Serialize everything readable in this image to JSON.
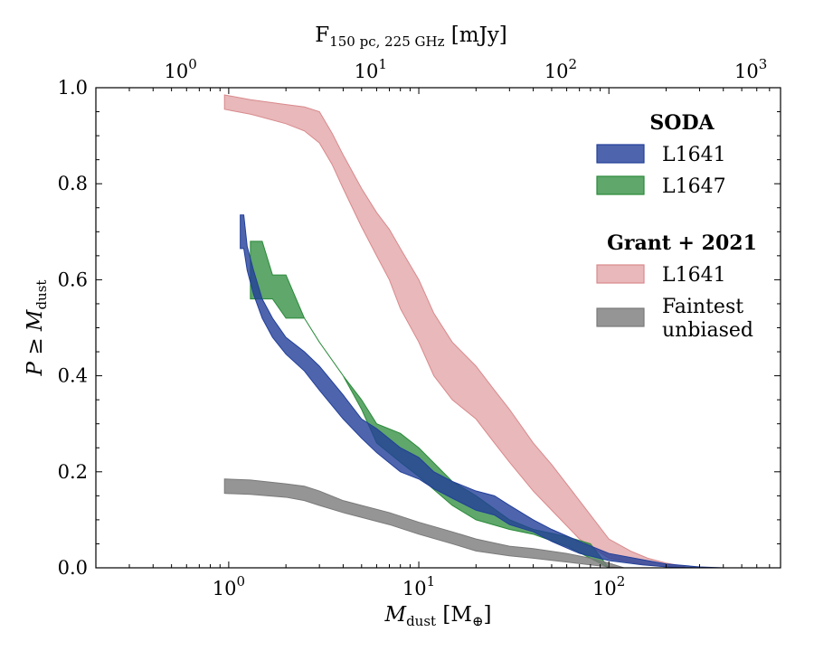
{
  "chart_data": {
    "type": "area",
    "title": "",
    "xscale": "log",
    "xlim": [
      0.2,
      800
    ],
    "ylim": [
      0.0,
      1.0
    ],
    "xlabel": {
      "main": "M",
      "sub": "dust",
      "unit_open": " [M",
      "unit_sub": "⊕",
      "unit_close": "]"
    },
    "ylabel": {
      "main": "P ≥ M",
      "sub": "dust"
    },
    "top_axis_label": {
      "main": "F",
      "sub": "150 pc, 225 GHz",
      "unit": " [mJy]"
    },
    "x_ticks": [
      {
        "value": 1,
        "base": "10",
        "exp": "0"
      },
      {
        "value": 10,
        "base": "10",
        "exp": "1"
      },
      {
        "value": 100,
        "base": "10",
        "exp": "2"
      }
    ],
    "top_ticks": [
      {
        "flux": 1,
        "base": "10",
        "exp": "0"
      },
      {
        "flux": 10,
        "base": "10",
        "exp": "1"
      },
      {
        "flux": 100,
        "base": "10",
        "exp": "2"
      },
      {
        "flux": 1000,
        "base": "10",
        "exp": "3"
      }
    ],
    "top_axis_mass_per_mjy": 0.558,
    "y_ticks": [
      "0.0",
      "0.2",
      "0.4",
      "0.6",
      "0.8",
      "1.0"
    ],
    "y_tick_values": [
      0.0,
      0.2,
      0.4,
      0.6,
      0.8,
      1.0
    ],
    "series": [
      {
        "name": "Grant + 2021 L1641",
        "color": "#d9898c",
        "alpha": 0.6,
        "x": [
          0.95,
          1.3,
          2.0,
          2.5,
          3.0,
          3.5,
          4.0,
          5.0,
          6.0,
          7.0,
          8.0,
          10.0,
          12.0,
          15.0,
          20.0,
          25.0,
          30.0,
          40.0,
          50.0,
          70.0,
          100.0,
          130.0,
          160.0,
          200.0,
          250.0
        ],
        "upper": [
          0.985,
          0.975,
          0.965,
          0.96,
          0.95,
          0.905,
          0.86,
          0.79,
          0.74,
          0.705,
          0.665,
          0.6,
          0.53,
          0.47,
          0.42,
          0.37,
          0.33,
          0.26,
          0.215,
          0.14,
          0.06,
          0.035,
          0.02,
          0.01,
          0.003
        ],
        "lower": [
          0.955,
          0.945,
          0.925,
          0.91,
          0.885,
          0.84,
          0.79,
          0.71,
          0.65,
          0.6,
          0.54,
          0.47,
          0.4,
          0.35,
          0.31,
          0.26,
          0.22,
          0.16,
          0.12,
          0.06,
          0.02,
          0.012,
          0.006,
          0.002,
          0.0
        ]
      },
      {
        "name": "SODA L1647",
        "color": "#2a8a3a",
        "alpha": 0.75,
        "x": [
          1.3,
          1.5,
          1.7,
          2.0,
          2.5,
          3.0,
          4.0,
          5.0,
          6.0,
          8.0,
          10.0,
          15.0,
          20.0,
          30.0,
          40.0,
          60.0,
          80.0,
          100.0
        ],
        "upper": [
          0.68,
          0.68,
          0.61,
          0.61,
          0.52,
          0.47,
          0.4,
          0.35,
          0.3,
          0.28,
          0.25,
          0.18,
          0.15,
          0.1,
          0.08,
          0.065,
          0.05,
          0.0
        ],
        "lower": [
          0.56,
          0.56,
          0.56,
          0.52,
          0.52,
          0.47,
          0.4,
          0.33,
          0.26,
          0.22,
          0.19,
          0.13,
          0.1,
          0.08,
          0.07,
          0.045,
          0.02,
          0.0
        ]
      },
      {
        "name": "SODA L1641",
        "color": "#223f99",
        "alpha": 0.8,
        "x": [
          1.15,
          1.2,
          1.25,
          1.35,
          1.5,
          1.7,
          2.0,
          2.5,
          3.0,
          4.0,
          5.0,
          6.0,
          8.0,
          10.0,
          12.0,
          15.0,
          20.0,
          25.0,
          30.0,
          40.0,
          50.0,
          70.0,
          100.0,
          150.0,
          200.0,
          300.0,
          400.0
        ],
        "upper": [
          0.735,
          0.735,
          0.67,
          0.62,
          0.56,
          0.52,
          0.48,
          0.45,
          0.42,
          0.36,
          0.31,
          0.29,
          0.25,
          0.23,
          0.2,
          0.18,
          0.16,
          0.15,
          0.13,
          0.1,
          0.08,
          0.055,
          0.03,
          0.017,
          0.008,
          0.002,
          0.0
        ],
        "lower": [
          0.665,
          0.665,
          0.62,
          0.57,
          0.52,
          0.48,
          0.445,
          0.41,
          0.37,
          0.31,
          0.27,
          0.24,
          0.2,
          0.185,
          0.165,
          0.145,
          0.12,
          0.11,
          0.09,
          0.075,
          0.055,
          0.03,
          0.015,
          0.006,
          0.002,
          0.0,
          0.0
        ]
      },
      {
        "name": "Grant + 2021 Faintest unbiased",
        "color": "#7a7a7a",
        "alpha": 0.8,
        "x": [
          0.95,
          1.3,
          2.0,
          2.5,
          3.0,
          4.0,
          5.0,
          7.0,
          10.0,
          15.0,
          20.0,
          30.0,
          40.0,
          60.0,
          80.0,
          100.0,
          120.0
        ],
        "upper": [
          0.185,
          0.183,
          0.175,
          0.17,
          0.16,
          0.14,
          0.13,
          0.115,
          0.095,
          0.075,
          0.06,
          0.045,
          0.04,
          0.03,
          0.02,
          0.01,
          0.0
        ],
        "lower": [
          0.155,
          0.153,
          0.147,
          0.14,
          0.13,
          0.115,
          0.105,
          0.09,
          0.07,
          0.05,
          0.035,
          0.025,
          0.02,
          0.012,
          0.006,
          0.002,
          0.0
        ]
      }
    ],
    "legend": {
      "position": "right",
      "groups": [
        {
          "title": "SODA",
          "items": [
            {
              "label_lines": [
                "L1641"
              ],
              "color": "#223f99",
              "alpha": 0.8
            },
            {
              "label_lines": [
                "L1647"
              ],
              "color": "#2a8a3a",
              "alpha": 0.75
            }
          ]
        },
        {
          "title": "Grant + 2021",
          "items": [
            {
              "label_lines": [
                "L1641"
              ],
              "color": "#d9898c",
              "alpha": 0.6
            },
            {
              "label_lines": [
                "Faintest",
                "unbiased"
              ],
              "color": "#7a7a7a",
              "alpha": 0.8
            }
          ]
        }
      ]
    }
  }
}
